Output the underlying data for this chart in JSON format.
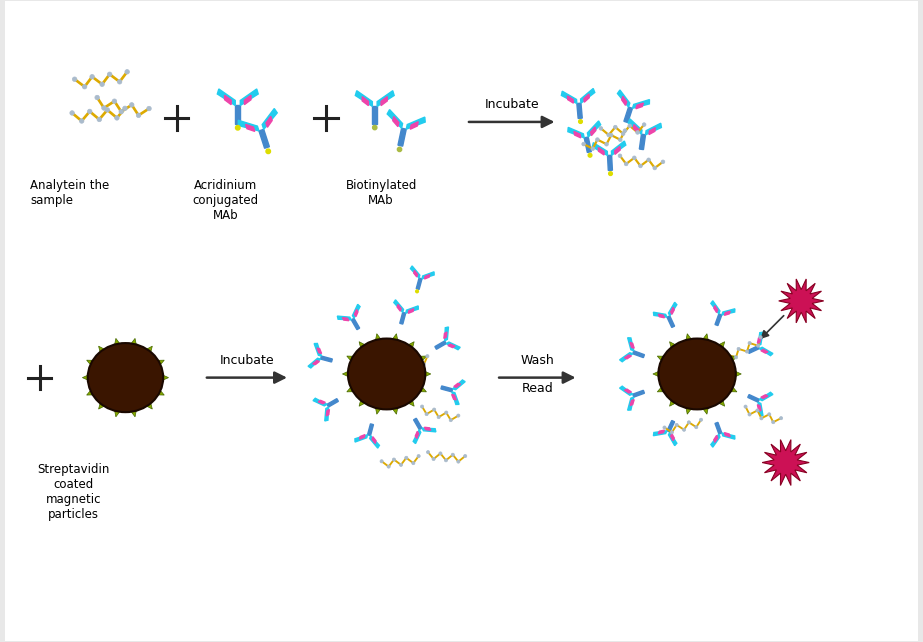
{
  "bg_color": "#f0f0f0",
  "figure_bg": "#e8e8e8",
  "labels": {
    "analyte": "Analytein the\nsample",
    "acridinium": "Acridinium\nconjugated\nMAb",
    "biotinylated": "Biotinylated\nMAb",
    "streptavidin": "Streptavidin\ncoated\nmagnetic\nparticles",
    "incubate1": "Incubate",
    "incubate2": "Incubate",
    "wash": "Wash",
    "read": "Read"
  },
  "colors": {
    "blue": "#4488cc",
    "cyan": "#22ccee",
    "pink": "#ee44aa",
    "yellow_chain": "#ddaa00",
    "circle_bg": "#3a1500",
    "green_spike": "#88aa00",
    "acridinium_dot": "#dddd00",
    "star_color": "#cc1155",
    "light_bead": "#aabbcc",
    "arrow_color": "#333333",
    "text_color": "#000000",
    "border_fill": "#ffffff",
    "border_color": "#aaaaaa",
    "biotin_dot": "#aabb44"
  }
}
